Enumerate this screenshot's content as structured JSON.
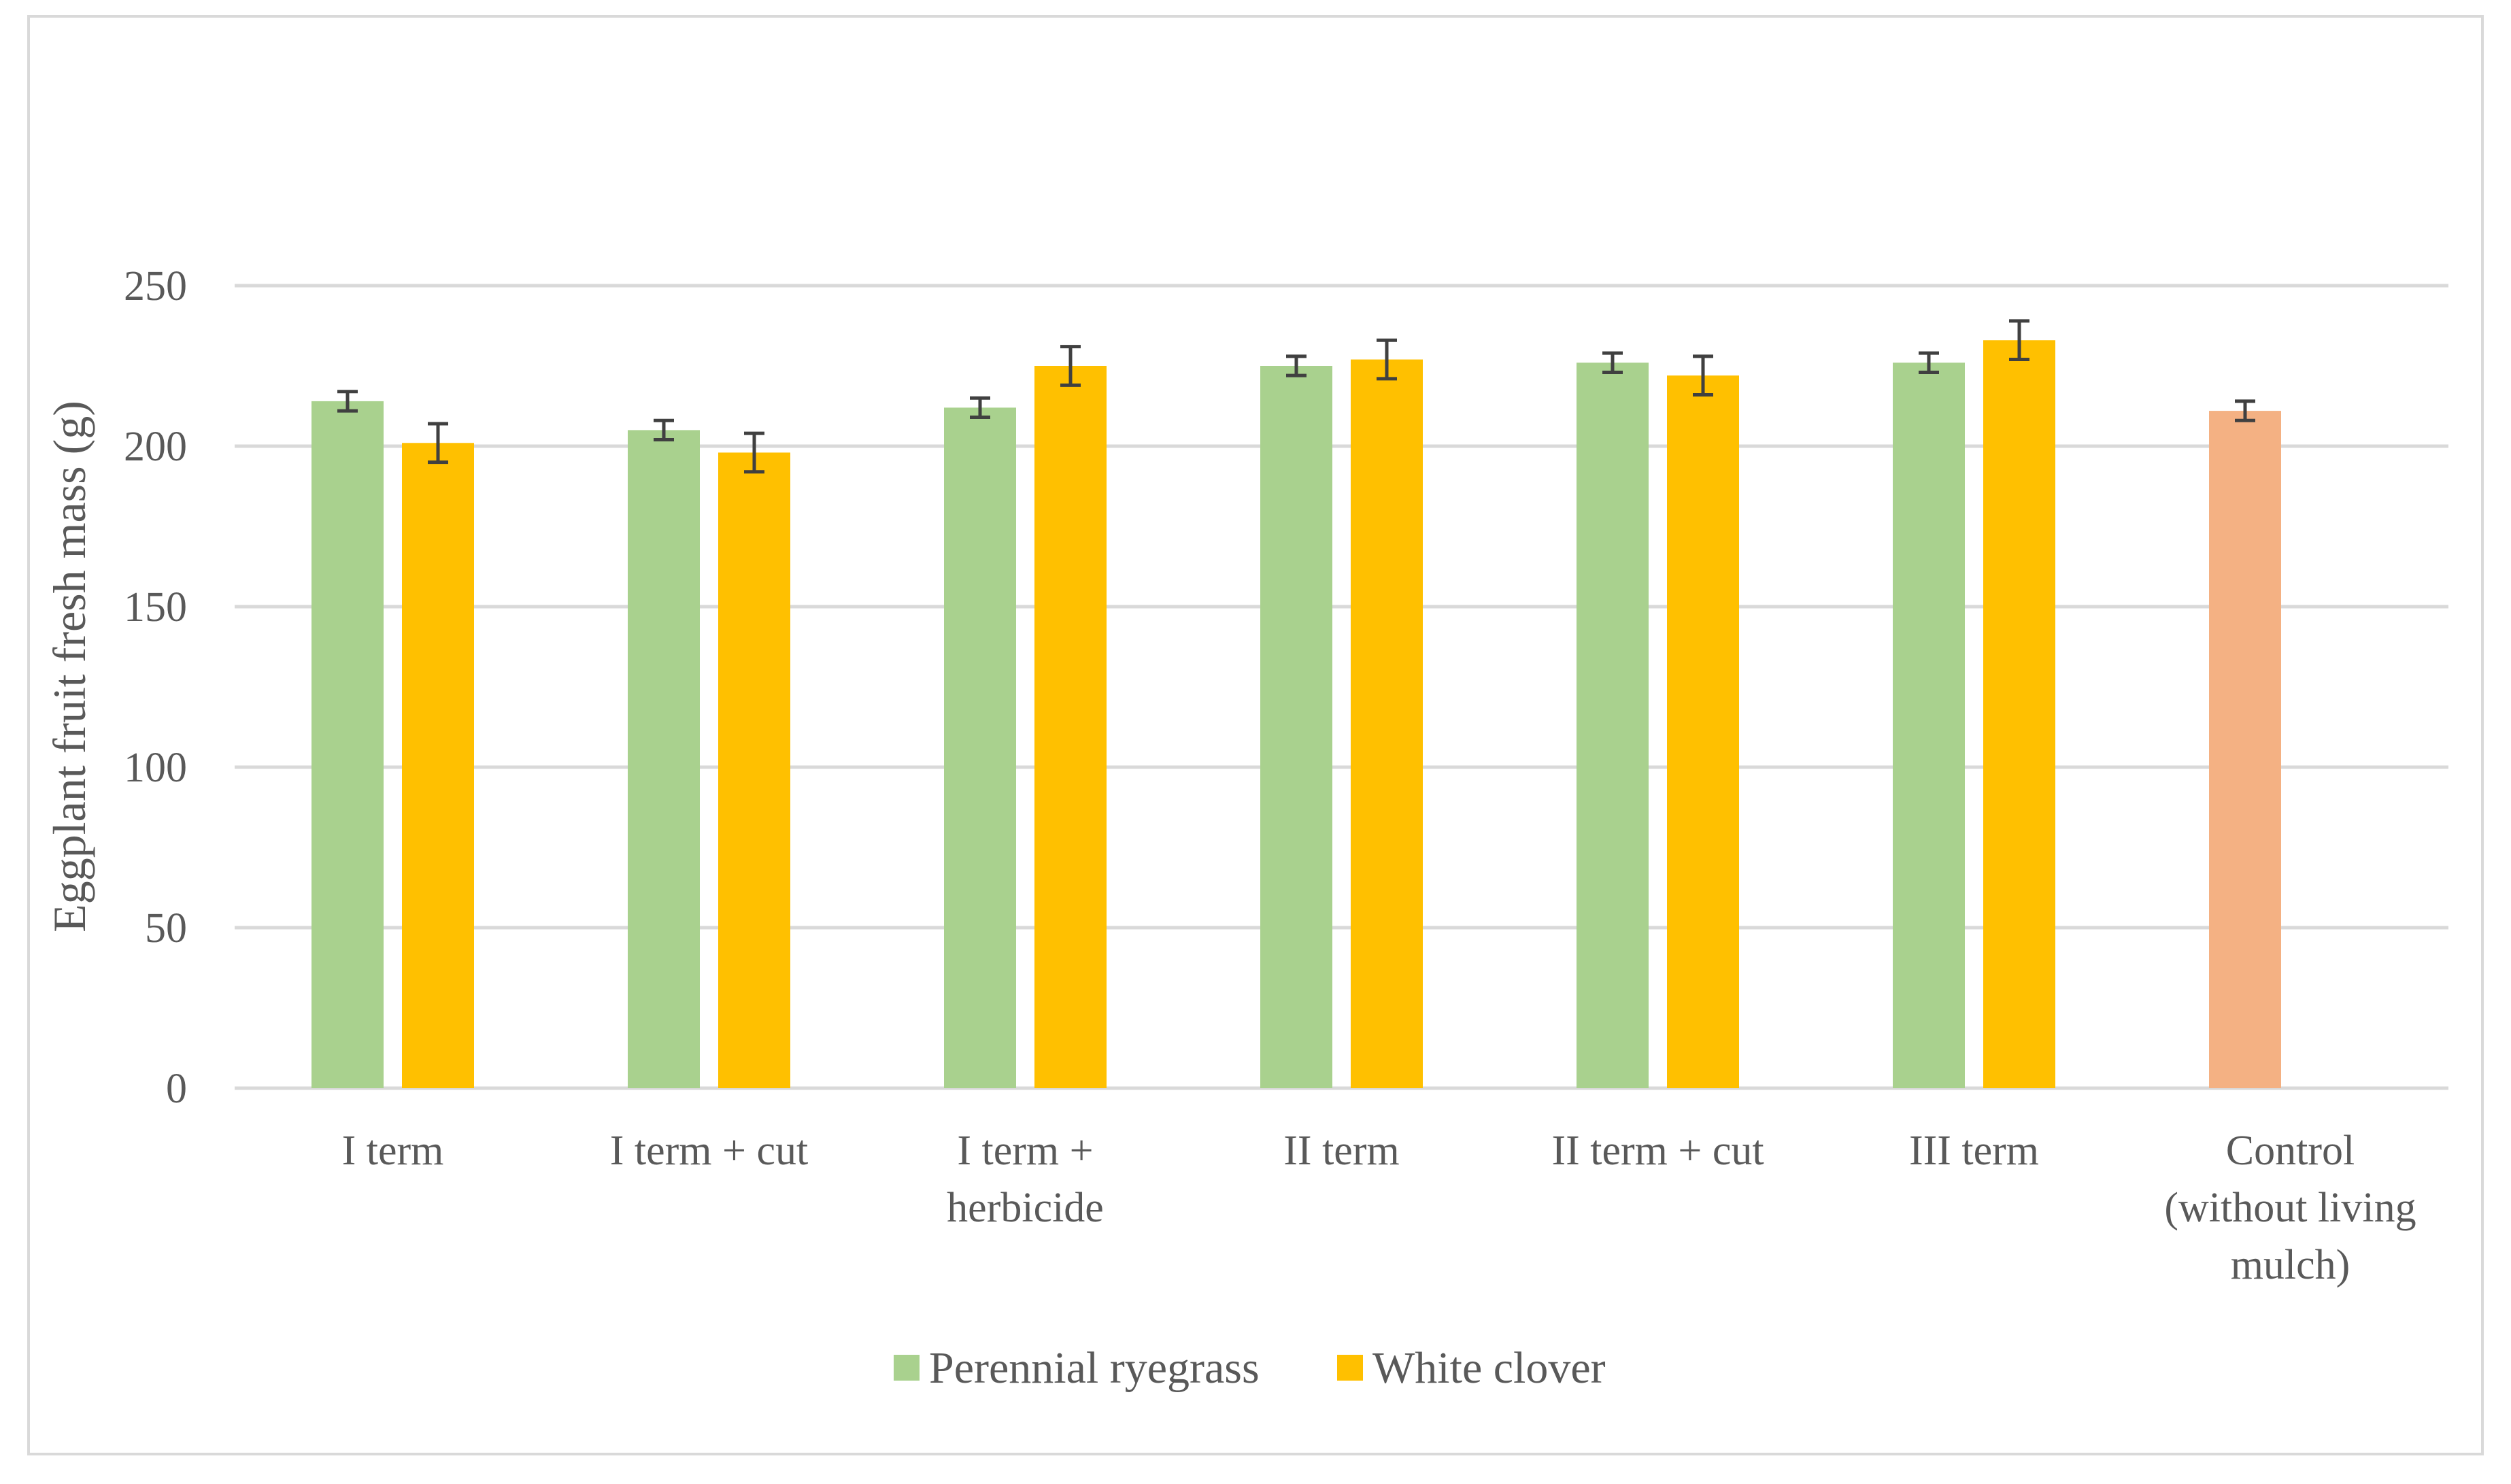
{
  "chart_data": {
    "type": "bar",
    "title": "",
    "xlabel": "",
    "ylabel": "Eggplant fruit fresh mass (g)",
    "ylim": [
      0,
      250
    ],
    "yticks": [
      0,
      50,
      100,
      150,
      200,
      250
    ],
    "grid": true,
    "legend_position": "bottom",
    "categories": [
      [
        "I term"
      ],
      [
        "I term + cut"
      ],
      [
        "I term +",
        "herbicide"
      ],
      [
        "II term"
      ],
      [
        "II term + cut"
      ],
      [
        "III term"
      ],
      [
        "Control",
        "(without living",
        "mulch)"
      ]
    ],
    "series": [
      {
        "name": "Perennial ryegrass",
        "color": "#a9d18e",
        "values": [
          214,
          205,
          212,
          225,
          226,
          226,
          211
        ],
        "errors": [
          3,
          3,
          3,
          3,
          3,
          3,
          3
        ],
        "point_colors": [
          "#a9d18e",
          "#a9d18e",
          "#a9d18e",
          "#a9d18e",
          "#a9d18e",
          "#a9d18e",
          "#f4b183"
        ]
      },
      {
        "name": "White clover",
        "color": "#ffc000",
        "values": [
          201,
          198,
          225,
          227,
          222,
          233,
          null
        ],
        "errors": [
          6,
          6,
          6,
          6,
          6,
          6,
          null
        ]
      }
    ],
    "gridline_color": "#d9d9d9",
    "text_color": "#595959",
    "errorbar_color": "#404040"
  }
}
